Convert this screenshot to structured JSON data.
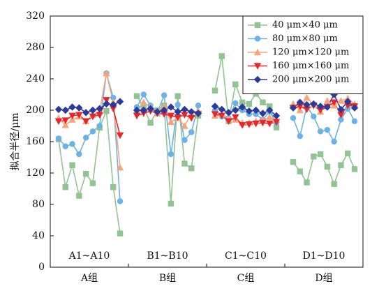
{
  "chart_data": {
    "type": "line",
    "ylabel": "拟合半径/μm",
    "groups": [
      {
        "range": "A1~A10",
        "name": "A组"
      },
      {
        "range": "B1~B10",
        "name": "B组"
      },
      {
        "range": "C1~C10",
        "name": "C组"
      },
      {
        "range": "D1~D10",
        "name": "D组"
      }
    ],
    "ylim": [
      0,
      320
    ],
    "yticks": [
      0,
      40,
      80,
      120,
      160,
      200,
      240,
      280,
      320
    ],
    "legend": "upper right",
    "series": [
      {
        "name": "40 μm×40 μm",
        "color": "#92c392",
        "marker": "square",
        "values": [
          [
            163,
            102,
            130,
            91,
            119,
            107,
            178,
            199,
            102,
            43
          ],
          [
            218,
            203,
            184,
            200,
            206,
            81,
            218,
            132,
            126,
            193
          ],
          [
            225,
            269,
            186,
            233,
            210,
            208,
            221,
            210,
            205,
            178
          ],
          [
            134,
            122,
            108,
            141,
            144,
            128,
            106,
            130,
            145,
            125
          ]
        ]
      },
      {
        "name": "80 μm×80 μm",
        "color": "#6cb2e6",
        "marker": "circle",
        "values": [
          [
            164,
            154,
            157,
            144,
            165,
            173,
            180,
            247,
            216,
            84
          ],
          [
            204,
            220,
            206,
            197,
            219,
            144,
            207,
            162,
            172,
            206
          ],
          [
            200,
            192,
            190,
            209,
            200,
            195,
            195,
            188,
            198,
            184
          ],
          [
            190,
            167,
            205,
            192,
            173,
            175,
            160,
            188,
            202,
            186
          ]
        ]
      },
      {
        "name": "120 μm×120 μm",
        "color": "#f5a57c",
        "marker": "triangle",
        "values": [
          [
            190,
            181,
            188,
            192,
            186,
            194,
            198,
            247,
            210,
            127
          ],
          [
            199,
            210,
            204,
            196,
            205,
            185,
            190,
            180,
            196,
            199
          ],
          [
            193,
            195,
            190,
            188,
            184,
            184,
            186,
            188,
            191,
            188
          ],
          [
            208,
            200,
            216,
            207,
            198,
            212,
            206,
            212,
            215,
            208
          ]
        ]
      },
      {
        "name": "160 μm×160 μm",
        "color": "#e5262b",
        "marker": "triangle-down",
        "values": [
          [
            186,
            187,
            193,
            194,
            186,
            192,
            194,
            213,
            202,
            168
          ],
          [
            193,
            196,
            199,
            196,
            195,
            193,
            191,
            194,
            190,
            195
          ],
          [
            195,
            193,
            186,
            191,
            181,
            182,
            183,
            184,
            183,
            185
          ],
          [
            203,
            205,
            201,
            206,
            200,
            204,
            210,
            194,
            206,
            205
          ]
        ]
      },
      {
        "name": "200 μm×200 μm",
        "color": "#2c3a9c",
        "marker": "diamond",
        "values": [
          [
            201,
            200,
            204,
            203,
            197,
            200,
            202,
            208,
            207,
            211
          ],
          [
            200,
            200,
            202,
            198,
            200,
            204,
            198,
            201,
            198,
            196
          ],
          [
            205,
            201,
            197,
            200,
            204,
            199,
            200,
            196,
            200,
            193
          ],
          [
            203,
            210,
            207,
            208,
            205,
            204,
            220,
            201,
            211,
            203
          ]
        ]
      }
    ]
  }
}
